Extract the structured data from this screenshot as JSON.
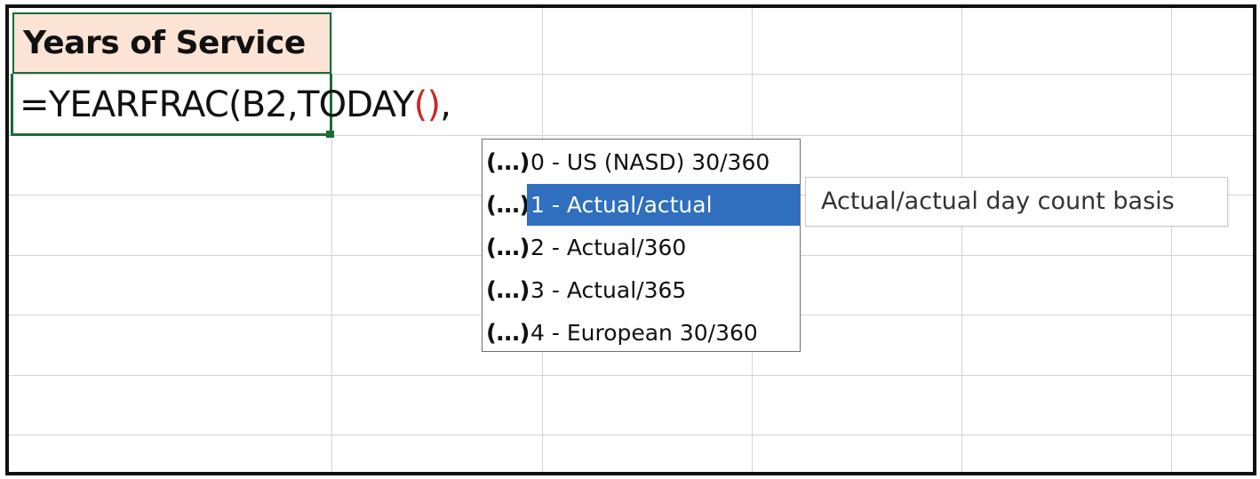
{
  "sheet": {
    "header_cell": "Years of Service",
    "formula": {
      "prefix": "=YEARFRAC(B2,TODAY",
      "open_paren": "(",
      "close_paren": ")",
      "suffix": ","
    }
  },
  "autocomplete": {
    "icon_glyph": "(...)",
    "items": [
      {
        "label": "0 - US (NASD) 30/360",
        "selected": false
      },
      {
        "label": "1 - Actual/actual",
        "selected": true
      },
      {
        "label": "2 - Actual/360",
        "selected": false
      },
      {
        "label": "3 - Actual/365",
        "selected": false
      },
      {
        "label": "4 - European 30/360",
        "selected": false
      }
    ],
    "tooltip": "Actual/actual day count basis"
  },
  "colors": {
    "header_fill": "#fbe3d5",
    "active_border": "#1d6b3a",
    "selection": "#2f6fbd",
    "paren": "#c8282a"
  }
}
